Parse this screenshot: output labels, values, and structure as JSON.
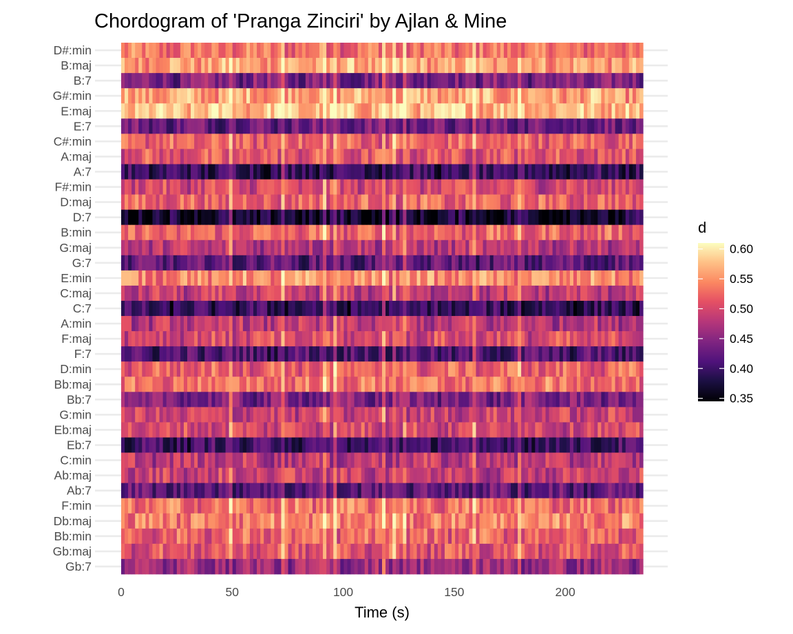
{
  "chart_data": {
    "type": "heatmap",
    "title": "Chordogram of 'Pranga Zinciri' by Ajlan & Mine",
    "xlabel": "Time (s)",
    "ylabel": "",
    "xlim": [
      0,
      235
    ],
    "x_ticks": [
      "0",
      "50",
      "100",
      "150",
      "200"
    ],
    "x_tick_values": [
      0,
      50,
      100,
      150,
      200
    ],
    "y_categories": [
      "D#:min",
      "B:maj",
      "B:7",
      "G#:min",
      "E:maj",
      "E:7",
      "C#:min",
      "A:maj",
      "A:7",
      "F#:min",
      "D:maj",
      "D:7",
      "B:min",
      "G:maj",
      "G:7",
      "E:min",
      "C:maj",
      "C:7",
      "A:min",
      "F:maj",
      "F:7",
      "D:min",
      "Bb:maj",
      "Bb:7",
      "G:min",
      "Eb:maj",
      "Eb:7",
      "C:min",
      "Ab:maj",
      "Ab:7",
      "F:min",
      "Db:maj",
      "Bb:min",
      "Gb:maj",
      "Gb:7"
    ],
    "row_mean_d": [
      0.53,
      0.56,
      0.44,
      0.56,
      0.575,
      0.43,
      0.52,
      0.51,
      0.395,
      0.5,
      0.52,
      0.37,
      0.52,
      0.48,
      0.42,
      0.545,
      0.485,
      0.39,
      0.48,
      0.5,
      0.41,
      0.52,
      0.53,
      0.44,
      0.49,
      0.5,
      0.4,
      0.48,
      0.49,
      0.42,
      0.53,
      0.54,
      0.52,
      0.51,
      0.46
    ],
    "legend": {
      "title": "d",
      "range": [
        0.345,
        0.61
      ],
      "ticks": [
        "0.60",
        "0.55",
        "0.50",
        "0.45",
        "0.40",
        "0.35"
      ],
      "tick_values": [
        0.6,
        0.55,
        0.5,
        0.45,
        0.4,
        0.35
      ],
      "placement": "right"
    },
    "colormap": "magma",
    "grid": true
  }
}
